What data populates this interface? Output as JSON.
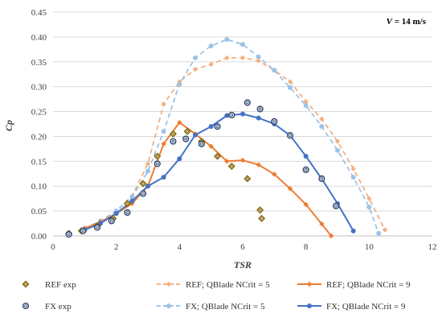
{
  "chart_data": {
    "type": "scatter",
    "title": "",
    "annotation": {
      "var": "V",
      "text": " = 14 m/s"
    },
    "xlabel": "TSR",
    "ylabel": "Cp",
    "xlim": [
      0,
      12
    ],
    "ylim": [
      0,
      0.45
    ],
    "xticks": [
      0,
      2,
      4,
      6,
      8,
      10,
      12
    ],
    "yticks": [
      0.0,
      0.05,
      0.1,
      0.15,
      0.2,
      0.25,
      0.3,
      0.35,
      0.4,
      0.45
    ],
    "ytick_labels": [
      "0.00",
      "0.05",
      "0.10",
      "0.15",
      "0.20",
      "0.25",
      "0.30",
      "0.35",
      "0.40",
      "0.45"
    ],
    "xtick_labels": [
      "0",
      "2",
      "4",
      "6",
      "8",
      "10",
      "12"
    ],
    "grid": "horizontal",
    "legend_position": "bottom",
    "series": [
      {
        "name": "REF exp",
        "kind": "marker",
        "marker": "diamond",
        "color": "#7f6000",
        "points": [
          [
            0.5,
            0.005
          ],
          [
            0.9,
            0.01
          ],
          [
            1.4,
            0.02
          ],
          [
            1.9,
            0.035
          ],
          [
            2.35,
            0.065
          ],
          [
            2.85,
            0.105
          ],
          [
            3.3,
            0.16
          ],
          [
            3.8,
            0.205
          ],
          [
            4.25,
            0.21
          ],
          [
            4.7,
            0.19
          ],
          [
            5.2,
            0.16
          ],
          [
            5.65,
            0.14
          ],
          [
            6.15,
            0.115
          ],
          [
            6.55,
            0.052
          ],
          [
            6.6,
            0.035
          ]
        ]
      },
      {
        "name": "FX exp",
        "kind": "marker",
        "marker": "circle",
        "color": "#1f3864",
        "points": [
          [
            0.5,
            0.003
          ],
          [
            0.95,
            0.01
          ],
          [
            1.4,
            0.017
          ],
          [
            1.85,
            0.03
          ],
          [
            2.35,
            0.047
          ],
          [
            2.85,
            0.085
          ],
          [
            3.3,
            0.145
          ],
          [
            3.8,
            0.19
          ],
          [
            4.2,
            0.195
          ],
          [
            4.7,
            0.185
          ],
          [
            5.2,
            0.22
          ],
          [
            5.65,
            0.243
          ],
          [
            6.15,
            0.268
          ],
          [
            6.55,
            0.255
          ],
          [
            7.0,
            0.23
          ],
          [
            7.5,
            0.202
          ],
          [
            8.0,
            0.133
          ],
          [
            8.5,
            0.115
          ],
          [
            8.95,
            0.06
          ]
        ]
      },
      {
        "name": "REF; QBlade NCrit = 5",
        "kind": "dashed-line",
        "color": "#f4b183",
        "points": [
          [
            1.0,
            0.015
          ],
          [
            1.5,
            0.03
          ],
          [
            2.0,
            0.05
          ],
          [
            2.5,
            0.08
          ],
          [
            3.0,
            0.145
          ],
          [
            3.5,
            0.265
          ],
          [
            4.0,
            0.31
          ],
          [
            4.5,
            0.335
          ],
          [
            5.0,
            0.345
          ],
          [
            5.5,
            0.358
          ],
          [
            6.0,
            0.358
          ],
          [
            6.5,
            0.352
          ],
          [
            7.0,
            0.333
          ],
          [
            7.5,
            0.31
          ],
          [
            8.0,
            0.27
          ],
          [
            8.5,
            0.235
          ],
          [
            9.0,
            0.19
          ],
          [
            9.5,
            0.135
          ],
          [
            10.0,
            0.075
          ],
          [
            10.5,
            0.012
          ]
        ]
      },
      {
        "name": "FX; QBlade NCrit = 5",
        "kind": "dashed-line",
        "color": "#9dc3e6",
        "points": [
          [
            1.0,
            0.015
          ],
          [
            1.5,
            0.03
          ],
          [
            2.0,
            0.05
          ],
          [
            2.5,
            0.078
          ],
          [
            3.0,
            0.13
          ],
          [
            3.5,
            0.21
          ],
          [
            4.0,
            0.305
          ],
          [
            4.5,
            0.358
          ],
          [
            5.0,
            0.382
          ],
          [
            5.5,
            0.395
          ],
          [
            6.0,
            0.385
          ],
          [
            6.5,
            0.36
          ],
          [
            7.0,
            0.333
          ],
          [
            7.5,
            0.298
          ],
          [
            8.0,
            0.262
          ],
          [
            8.5,
            0.22
          ],
          [
            9.0,
            0.172
          ],
          [
            9.5,
            0.118
          ],
          [
            10.0,
            0.058
          ],
          [
            10.3,
            0.005
          ]
        ]
      },
      {
        "name": "REF; QBlade NCrit = 9",
        "kind": "solid-line",
        "color": "#ed7d31",
        "points": [
          [
            1.0,
            0.015
          ],
          [
            1.5,
            0.028
          ],
          [
            2.0,
            0.045
          ],
          [
            2.5,
            0.065
          ],
          [
            3.0,
            0.1
          ],
          [
            3.5,
            0.185
          ],
          [
            4.0,
            0.228
          ],
          [
            4.5,
            0.205
          ],
          [
            5.0,
            0.18
          ],
          [
            5.5,
            0.15
          ],
          [
            6.0,
            0.152
          ],
          [
            6.5,
            0.143
          ],
          [
            7.0,
            0.124
          ],
          [
            7.5,
            0.095
          ],
          [
            8.0,
            0.063
          ],
          [
            8.5,
            0.024
          ],
          [
            8.8,
            0.0
          ]
        ]
      },
      {
        "name": "FX; QBlade NCrit = 9",
        "kind": "solid-line",
        "color": "#4472c4",
        "points": [
          [
            1.0,
            0.012
          ],
          [
            1.5,
            0.025
          ],
          [
            2.0,
            0.045
          ],
          [
            2.5,
            0.07
          ],
          [
            3.0,
            0.1
          ],
          [
            3.5,
            0.118
          ],
          [
            4.0,
            0.155
          ],
          [
            4.5,
            0.203
          ],
          [
            5.0,
            0.22
          ],
          [
            5.5,
            0.242
          ],
          [
            6.0,
            0.245
          ],
          [
            6.5,
            0.237
          ],
          [
            7.0,
            0.225
          ],
          [
            7.5,
            0.202
          ],
          [
            8.0,
            0.16
          ],
          [
            8.5,
            0.115
          ],
          [
            9.0,
            0.065
          ],
          [
            9.5,
            0.01
          ]
        ]
      }
    ],
    "legend": [
      {
        "series": 0
      },
      {
        "series": 2
      },
      {
        "series": 4
      },
      {
        "series": 1
      },
      {
        "series": 3
      },
      {
        "series": 5
      }
    ]
  }
}
